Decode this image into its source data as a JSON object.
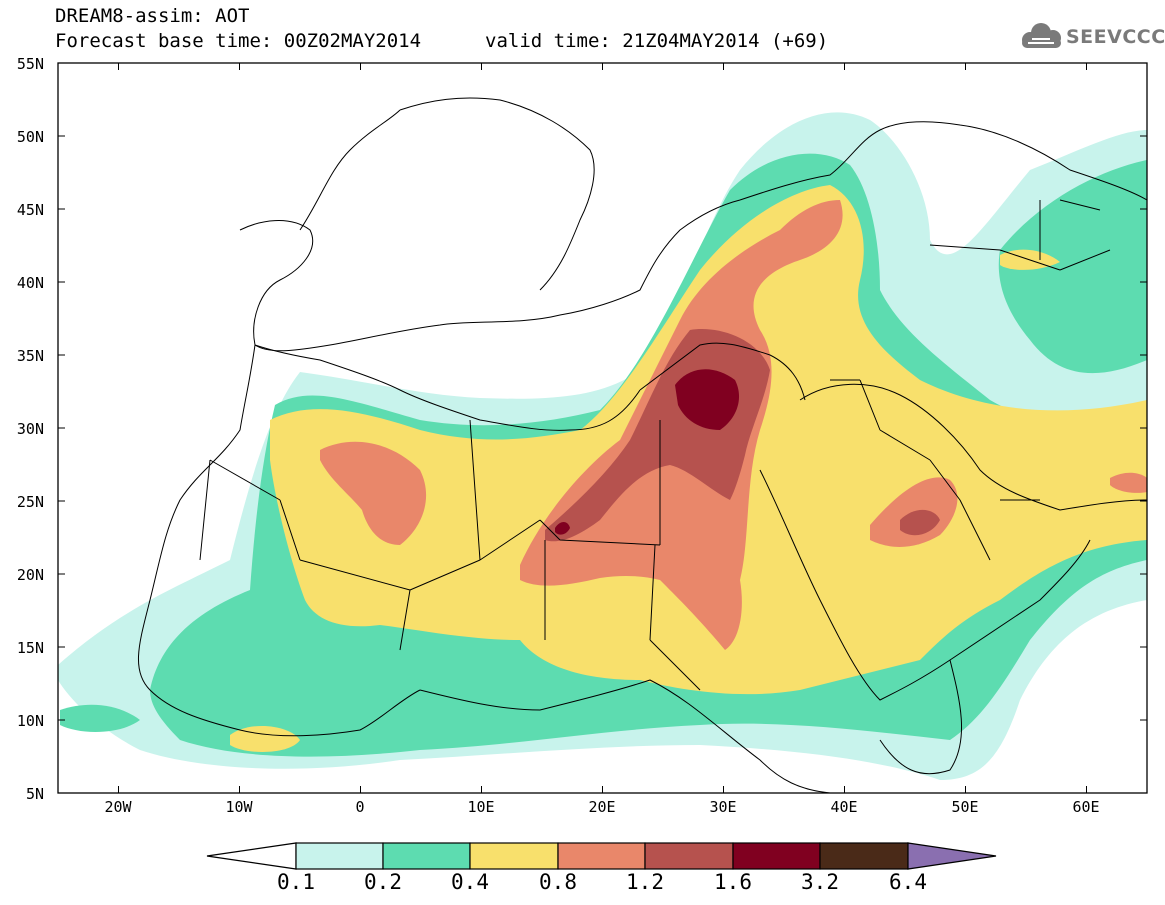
{
  "header": {
    "model_line": "DREAM8-assim: AOT",
    "base_time": "Forecast base time: 00Z02MAY2014",
    "valid_time": "valid time: 21Z04MAY2014 (+69)",
    "logo_text": "SEEVCCC"
  },
  "map": {
    "lat_labels": [
      "55N",
      "50N",
      "45N",
      "40N",
      "35N",
      "30N",
      "25N",
      "20N",
      "15N",
      "10N",
      "5N"
    ],
    "lon_labels": [
      "20W",
      "10W",
      "0",
      "10E",
      "20E",
      "30E",
      "40E",
      "50E",
      "60E"
    ],
    "extent": {
      "lon_min": -25,
      "lon_max": 65,
      "lat_min": 5,
      "lat_max": 55
    },
    "background_color": "#ffffff",
    "border_color": "#000000"
  },
  "colorbar": {
    "labels": [
      "0.1",
      "0.2",
      "0.4",
      "0.8",
      "1.2",
      "1.6",
      "3.2",
      "6.4"
    ],
    "colors": [
      "#ffffff",
      "#c8f3ec",
      "#5ddcb0",
      "#f8e06c",
      "#e9876a",
      "#b6524e",
      "#800020",
      "#4a2a18",
      "#8a6fb0"
    ]
  }
}
